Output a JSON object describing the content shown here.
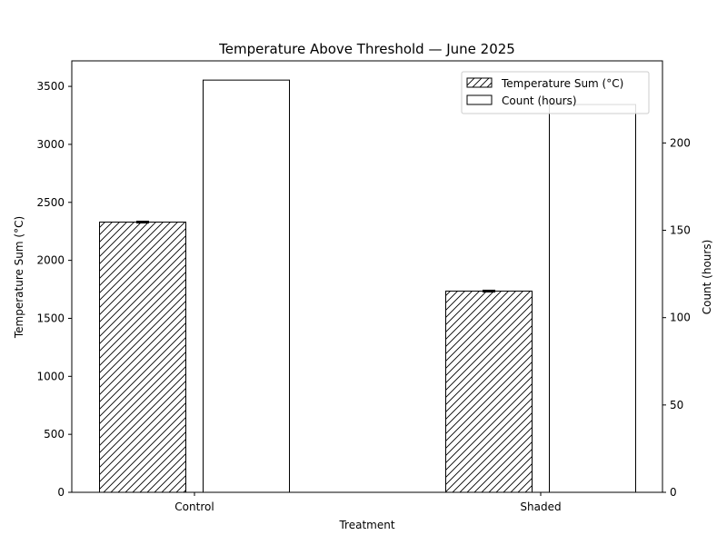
{
  "chart_data": {
    "type": "bar",
    "title": "Temperature Above Threshold — June 2025",
    "xlabel": "Treatment",
    "ylabel_left": "Temperature Sum (°C)",
    "ylabel_right": "Count (hours)",
    "categories": [
      "Control",
      "Shaded"
    ],
    "series": [
      {
        "name": "Temperature Sum (°C)",
        "axis": "left",
        "values": [
          2330,
          1735
        ],
        "error": [
          6,
          6
        ],
        "pattern": "hatch"
      },
      {
        "name": "Count (hours)",
        "axis": "right",
        "values": [
          236,
          222
        ],
        "pattern": "none"
      }
    ],
    "ylim_left": [
      0,
      3720
    ],
    "ylim_right": [
      0,
      247
    ],
    "yticks_left": [
      0,
      500,
      1000,
      1500,
      2000,
      2500,
      3000,
      3500
    ],
    "yticks_right": [
      0,
      50,
      100,
      150,
      200
    ],
    "grid": false,
    "legend": "top-right"
  }
}
